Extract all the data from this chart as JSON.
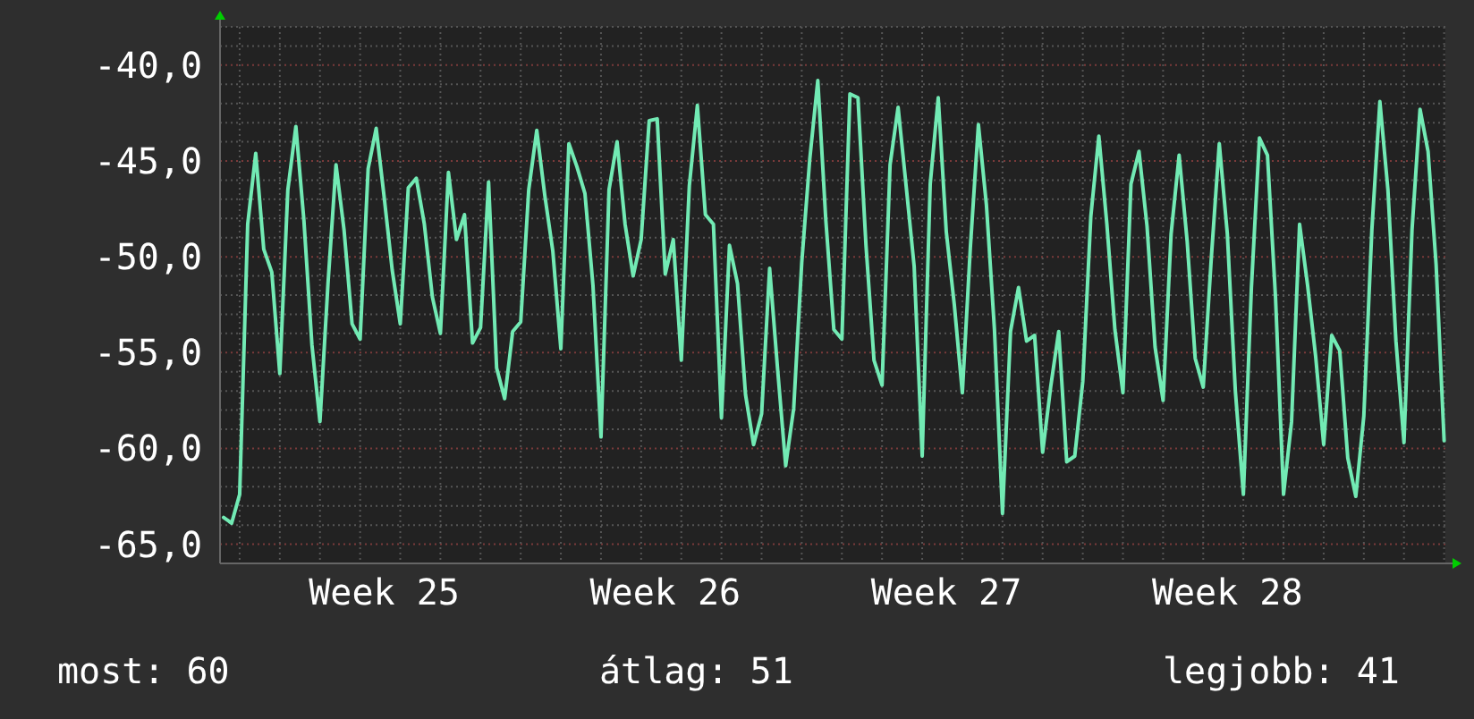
{
  "chart_data": {
    "type": "line",
    "ylim": [
      -66,
      -38
    ],
    "categories": [
      null,
      null,
      null,
      null,
      null,
      null,
      null,
      null,
      null,
      null,
      null,
      null,
      null,
      null,
      null,
      null,
      null,
      null,
      null,
      null,
      "Week 25",
      null,
      null,
      null,
      null,
      null,
      null,
      null,
      null,
      null,
      null,
      null,
      null,
      null,
      null,
      null,
      null,
      null,
      null,
      null,
      null,
      null,
      null,
      null,
      null,
      null,
      null,
      null,
      null,
      null,
      null,
      null,
      null,
      null,
      null,
      "Week 26",
      null,
      null,
      null,
      null,
      null,
      null,
      null,
      null,
      null,
      null,
      null,
      null,
      null,
      null,
      null,
      null,
      null,
      null,
      null,
      null,
      null,
      null,
      null,
      null,
      null,
      null,
      null,
      null,
      null,
      null,
      null,
      null,
      null,
      null,
      "Week 27",
      null,
      null,
      null,
      null,
      null,
      null,
      null,
      null,
      null,
      null,
      null,
      null,
      null,
      null,
      null,
      null,
      null,
      null,
      null,
      null,
      null,
      null,
      null,
      null,
      null,
      null,
      null,
      null,
      null,
      null,
      null,
      null,
      null,
      null,
      "Week 28",
      null,
      null,
      null,
      null,
      null,
      null,
      null,
      null,
      null,
      null,
      null,
      null,
      null,
      null,
      null,
      null,
      null,
      null,
      null,
      null,
      null,
      null,
      null,
      null,
      null,
      null,
      null
    ],
    "yticks": [
      {
        "value": -65,
        "label": "-65,0"
      },
      {
        "value": -64,
        "label": null
      },
      {
        "value": -63,
        "label": null
      },
      {
        "value": -62,
        "label": null
      },
      {
        "value": -61,
        "label": null
      },
      {
        "value": -60,
        "label": "-60,0"
      },
      {
        "value": -59,
        "label": null
      },
      {
        "value": -58,
        "label": null
      },
      {
        "value": -57,
        "label": null
      },
      {
        "value": -56,
        "label": null
      },
      {
        "value": -55,
        "label": "-55,0"
      },
      {
        "value": -54,
        "label": null
      },
      {
        "value": -53,
        "label": null
      },
      {
        "value": -52,
        "label": null
      },
      {
        "value": -51,
        "label": null
      },
      {
        "value": -50,
        "label": "-50,0"
      },
      {
        "value": -49,
        "label": null
      },
      {
        "value": -48,
        "label": null
      },
      {
        "value": -47,
        "label": null
      },
      {
        "value": -46,
        "label": null
      },
      {
        "value": -45,
        "label": "-45,0"
      },
      {
        "value": -44,
        "label": null
      },
      {
        "value": -43,
        "label": null
      },
      {
        "value": -42,
        "label": null
      },
      {
        "value": -41,
        "label": null
      },
      {
        "value": -40,
        "label": "-40,0"
      },
      {
        "value": -39,
        "label": null
      },
      {
        "value": -38,
        "label": null
      }
    ],
    "grid": true,
    "annotations": [
      "most: 60",
      "átlag: 51",
      "legjobb: 41"
    ],
    "series": [
      {
        "color": "#72eab4",
        "values": [
          -63.6,
          -63.9,
          -62.4,
          -48.3,
          -44.6,
          -49.6,
          -50.8,
          -56.1,
          -46.5,
          -43.2,
          -48.1,
          -54.6,
          -58.6,
          -51.4,
          -45.2,
          -48.6,
          -53.5,
          -54.3,
          -45.4,
          -43.3,
          -46.9,
          -50.7,
          -53.5,
          -46.4,
          -45.9,
          -48.3,
          -52.1,
          -54.0,
          -45.6,
          -49.1,
          -47.8,
          -54.5,
          -53.7,
          -46.1,
          -55.8,
          -57.4,
          -53.9,
          -53.4,
          -46.5,
          -43.4,
          -46.8,
          -49.7,
          -54.8,
          -44.1,
          -45.3,
          -46.7,
          -51.5,
          -59.4,
          -46.5,
          -44.0,
          -48.3,
          -51.0,
          -49.1,
          -42.9,
          -42.8,
          -50.9,
          -49.1,
          -55.4,
          -46.3,
          -42.1,
          -47.8,
          -48.3,
          -58.4,
          -49.4,
          -51.4,
          -57.2,
          -59.8,
          -58.2,
          -50.6,
          -55.9,
          -60.9,
          -57.9,
          -50.3,
          -44.9,
          -40.8,
          -48.1,
          -53.8,
          -54.3,
          -41.5,
          -41.7,
          -49.4,
          -55.4,
          -56.7,
          -45.2,
          -42.2,
          -46.3,
          -50.5,
          -60.4,
          -46.2,
          -41.7,
          -48.7,
          -52.5,
          -57.1,
          -49.5,
          -43.1,
          -47.3,
          -53.8,
          -63.4,
          -53.9,
          -51.6,
          -54.4,
          -54.1,
          -60.2,
          -56.8,
          -53.9,
          -60.7,
          -60.4,
          -56.5,
          -47.9,
          -43.7,
          -48.3,
          -53.8,
          -57.1,
          -46.2,
          -44.5,
          -48.4,
          -54.7,
          -57.5,
          -48.8,
          -44.7,
          -49.2,
          -55.3,
          -56.8,
          -50.1,
          -44.1,
          -48.8,
          -57.0,
          -62.4,
          -51.6,
          -43.8,
          -44.7,
          -52.1,
          -62.4,
          -58.6,
          -48.3,
          -51.5,
          -55.2,
          -59.8,
          -54.1,
          -54.9,
          -60.5,
          -62.5,
          -58.3,
          -48.6,
          -41.9,
          -46.5,
          -54.4,
          -59.7,
          -48.6,
          -42.3,
          -44.5,
          -50.4,
          -59.6
        ]
      }
    ]
  }
}
